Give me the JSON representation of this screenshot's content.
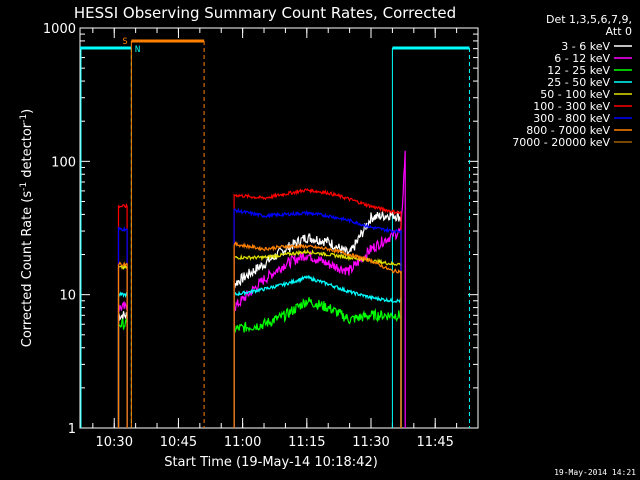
{
  "chart_data": {
    "type": "line",
    "title": "HESSI Observing Summary Count Rates, Corrected",
    "xlabel": "Start Time (19-May-14 10:18:42)",
    "ylabel_main": "Corrected Count Rate (s",
    "ylabel_sup1": "-1",
    "ylabel_mid": " detector",
    "ylabel_sup2": "-1",
    "ylabel_end": ")",
    "yscale": "log",
    "ylim": [
      1,
      1000
    ],
    "xlim_minutes": [
      "10:22",
      "11:55"
    ],
    "x_ticks": [
      "10:30",
      "10:45",
      "11:00",
      "11:15",
      "11:30",
      "11:45"
    ],
    "y_ticks": [
      "1",
      "10",
      "100",
      "1000"
    ],
    "legend_header": [
      "Det 1,3,5,6,7,9,",
      "Att 0"
    ],
    "legend_position": "right",
    "footer_timestamp": "19-May-2014 14:21",
    "flags": [
      {
        "label": "S",
        "color": "#ff8000"
      },
      {
        "label": "N",
        "color": "#00ffff"
      }
    ],
    "series": [
      {
        "name": "3 - 6 keV",
        "color": "#ffffff",
        "segments": [
          {
            "x": [
              "10:31",
              "10:33"
            ],
            "y": [
              7,
              7
            ]
          },
          {
            "x": [
              "10:58",
              "11:05",
              "11:10",
              "11:15",
              "11:20",
              "11:25",
              "11:30",
              "11:35",
              "11:37"
            ],
            "y": [
              12,
              17,
              22,
              27,
              25,
              20,
              38,
              40,
              38
            ]
          }
        ]
      },
      {
        "name": "6 - 12 keV",
        "color": "#ff00ff",
        "segments": [
          {
            "x": [
              "10:31",
              "10:33"
            ],
            "y": [
              8,
              8
            ]
          },
          {
            "x": [
              "10:58",
              "11:05",
              "11:10",
              "11:15",
              "11:20",
              "11:25",
              "11:30",
              "11:35",
              "11:37",
              "11:38"
            ],
            "y": [
              8,
              13,
              17,
              20,
              17,
              15,
              22,
              28,
              30,
              120
            ]
          }
        ]
      },
      {
        "name": "12 - 25 keV",
        "color": "#00ff00",
        "segments": [
          {
            "x": [
              "10:31",
              "10:33"
            ],
            "y": [
              6,
              6
            ]
          },
          {
            "x": [
              "10:58",
              "11:05",
              "11:10",
              "11:15",
              "11:20",
              "11:25",
              "11:30",
              "11:35",
              "11:37"
            ],
            "y": [
              5.5,
              6,
              7,
              9,
              8,
              6.5,
              7,
              7,
              7
            ]
          }
        ]
      },
      {
        "name": "25 - 50 keV",
        "color": "#00ffff",
        "segments": [
          {
            "x": [
              "10:31",
              "10:33"
            ],
            "y": [
              10,
              10
            ]
          },
          {
            "x": [
              "10:58",
              "11:05",
              "11:10",
              "11:15",
              "11:20",
              "11:25",
              "11:30",
              "11:35",
              "11:37"
            ],
            "y": [
              10,
              11,
              12,
              13.5,
              12,
              10.5,
              9.5,
              9,
              9
            ]
          }
        ]
      },
      {
        "name": "50 - 100 keV",
        "color": "#e0e000",
        "segments": [
          {
            "x": [
              "10:31",
              "10:33"
            ],
            "y": [
              16,
              16
            ]
          },
          {
            "x": [
              "10:58",
              "11:05",
              "11:10",
              "11:15",
              "11:20",
              "11:25",
              "11:30",
              "11:35",
              "11:37"
            ],
            "y": [
              19,
              19,
              20,
              21,
              20,
              19,
              18,
              17,
              17
            ]
          }
        ]
      },
      {
        "name": "100 - 300 keV",
        "color": "#ff0000",
        "segments": [
          {
            "x": [
              "10:31",
              "10:33"
            ],
            "y": [
              46,
              46
            ]
          },
          {
            "x": [
              "10:58",
              "11:05",
              "11:10",
              "11:15",
              "11:20",
              "11:25",
              "11:30",
              "11:35",
              "11:37"
            ],
            "y": [
              56,
              53,
              57,
              61,
              58,
              52,
              46,
              42,
              41
            ]
          }
        ]
      },
      {
        "name": "300 - 800 keV",
        "color": "#0000ff",
        "segments": [
          {
            "x": [
              "10:31",
              "10:33"
            ],
            "y": [
              31,
              31
            ]
          },
          {
            "x": [
              "10:58",
              "11:05",
              "11:10",
              "11:15",
              "11:20",
              "11:25",
              "11:30",
              "11:35",
              "11:37"
            ],
            "y": [
              43,
              39,
              40,
              41,
              39,
              36,
              32,
              30,
              30
            ]
          }
        ]
      },
      {
        "name": "800 - 7000 keV",
        "color": "#ff8000",
        "segments": [
          {
            "x": [
              "10:31",
              "10:33"
            ],
            "y": [
              17,
              17
            ]
          },
          {
            "x": [
              "10:58",
              "11:05",
              "11:10",
              "11:15",
              "11:20",
              "11:25",
              "11:30",
              "11:35",
              "11:37"
            ],
            "y": [
              24,
              22,
              23,
              23,
              22,
              20,
              18,
              15,
              15
            ]
          }
        ]
      },
      {
        "name": "7000 - 20000 keV",
        "color": "#a06000",
        "segments": []
      }
    ]
  }
}
